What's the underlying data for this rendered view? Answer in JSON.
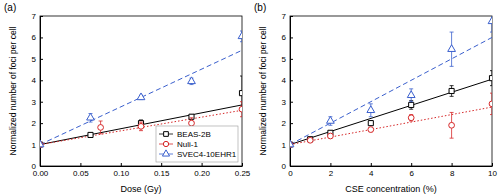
{
  "chart_data": [
    {
      "type": "scatter",
      "title": "(a)",
      "x_label": "Dose (Gy)",
      "y_label": "Normalized number of foci per cell",
      "xlim": [
        0,
        0.25
      ],
      "xticks": [
        {
          "value": 0,
          "label": "0.00"
        },
        {
          "value": 0.05,
          "label": "0.05"
        },
        {
          "value": 0.1,
          "label": "0.10"
        },
        {
          "value": 0.15,
          "label": "0.15"
        },
        {
          "value": 0.2,
          "label": "0.20"
        },
        {
          "value": 0.25,
          "label": "0.25"
        }
      ],
      "ylim": [
        0,
        7
      ],
      "yticks": [
        0,
        1,
        2,
        3,
        4,
        5,
        6,
        7
      ],
      "legend": "lower right",
      "series": [
        {
          "name": "BEAS-2B",
          "type": "scatter",
          "marker": "square",
          "color": "#000000",
          "x": [
            0,
            0.0625,
            0.125,
            0.1875,
            0.25
          ],
          "values": [
            1,
            1.45,
            2.0,
            2.3,
            3.4
          ],
          "errors": [
            0,
            0.1,
            0.15,
            0.1,
            0.8
          ]
        },
        {
          "name": "Nuli-1",
          "type": "scatter",
          "marker": "circle",
          "color": "#d62728",
          "x": [
            0,
            0.075,
            0.125,
            0.1875,
            0.25
          ],
          "values": [
            1,
            1.8,
            1.85,
            2.0,
            2.65
          ],
          "errors": [
            0,
            0.3,
            0.2,
            0.25,
            0.35
          ]
        },
        {
          "name": "SVEC4-10EHR1",
          "type": "scatter",
          "marker": "triangle",
          "color": "#3a5fcd",
          "x": [
            0,
            0.0625,
            0.125,
            0.1875,
            0.25
          ],
          "values": [
            1,
            2.25,
            3.2,
            3.95,
            6.05
          ],
          "errors": [
            0,
            0.2,
            0.1,
            0.15,
            0.25
          ]
        },
        {
          "type": "line",
          "line_style": "solid",
          "color": "#000000",
          "x": [
            0,
            0.25
          ],
          "values": [
            1,
            2.85
          ]
        },
        {
          "type": "line",
          "line_style": "dotted",
          "color": "#d62728",
          "x": [
            0,
            0.25
          ],
          "values": [
            1,
            2.6
          ]
        },
        {
          "type": "line",
          "line_style": "dashed",
          "color": "#3a5fcd",
          "x": [
            0,
            0.25
          ],
          "values": [
            1,
            5.4
          ]
        }
      ]
    },
    {
      "type": "scatter",
      "title": "(b)",
      "x_label": "CSE concentration (%)",
      "y_label": "Normalized number of foci per cell",
      "xlim": [
        0,
        10
      ],
      "xticks": [
        0,
        2,
        4,
        6,
        8,
        10
      ],
      "ylim": [
        0,
        7
      ],
      "yticks": [
        0,
        1,
        2,
        3,
        4,
        5,
        6,
        7
      ],
      "series": [
        {
          "type": "scatter",
          "marker": "square",
          "color": "#000000",
          "x": [
            0,
            1,
            2,
            4,
            6,
            8,
            10
          ],
          "values": [
            1,
            1.25,
            1.55,
            2.0,
            2.85,
            3.5,
            4.1
          ],
          "errors": [
            0,
            0.05,
            0.1,
            0.1,
            0.2,
            0.25,
            0.35
          ]
        },
        {
          "type": "scatter",
          "marker": "circle",
          "color": "#d62728",
          "x": [
            0,
            1,
            2,
            4,
            6,
            8,
            10
          ],
          "values": [
            1,
            1.2,
            1.4,
            1.7,
            2.25,
            1.9,
            2.9
          ],
          "errors": [
            0,
            0.05,
            0.1,
            0.1,
            0.15,
            0.6,
            0.5
          ]
        },
        {
          "type": "scatter",
          "marker": "triangle",
          "color": "#3a5fcd",
          "x": [
            0,
            2,
            4,
            6,
            8,
            10
          ],
          "values": [
            1,
            2.1,
            2.6,
            3.3,
            5.45,
            6.75
          ],
          "errors": [
            0,
            0.2,
            0.3,
            0.3,
            0.8,
            0.5
          ]
        },
        {
          "type": "line",
          "line_style": "solid",
          "color": "#000000",
          "x": [
            0,
            10
          ],
          "values": [
            1,
            4.05
          ]
        },
        {
          "type": "line",
          "line_style": "dotted",
          "color": "#d62728",
          "x": [
            0,
            10
          ],
          "values": [
            1,
            2.75
          ]
        },
        {
          "type": "line",
          "line_style": "dashed",
          "color": "#3a5fcd",
          "x": [
            0,
            10
          ],
          "values": [
            1,
            6
          ]
        }
      ]
    }
  ]
}
